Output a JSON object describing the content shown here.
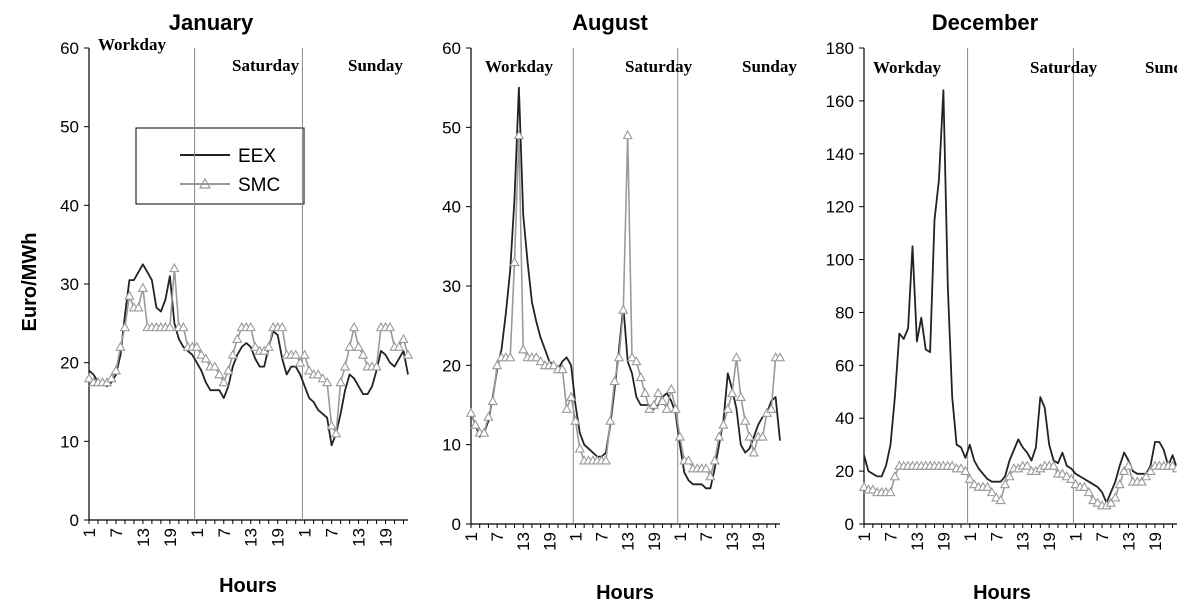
{
  "colors": {
    "eex": "#222222",
    "smc": "#9a9a9a",
    "axis": "#000000",
    "separator": "#888888"
  },
  "legend": {
    "entries": [
      "EEX",
      "SMC"
    ]
  },
  "chart_data": [
    {
      "type": "line",
      "title": "January",
      "xlabel": "Hours",
      "ylabel": "Euro/MWh",
      "ylim": [
        0,
        60
      ],
      "yticks": [
        0,
        10,
        20,
        30,
        40,
        50,
        60
      ],
      "xtick_labels": [
        "1",
        "7",
        "13",
        "19",
        "1",
        "7",
        "13",
        "19",
        "1",
        "7",
        "13",
        "19"
      ],
      "day_labels": [
        "Workday",
        "Saturday",
        "Sunday"
      ],
      "hours_per_day": 24,
      "grid": false,
      "legend_position": "top-center",
      "series": [
        {
          "name": "EEX",
          "values": [
            19,
            18.5,
            17.5,
            17.5,
            17,
            17.5,
            18.5,
            21,
            26,
            30.5,
            30.5,
            31.5,
            32.5,
            31.5,
            30.5,
            27,
            26.5,
            28,
            31,
            25,
            23,
            22,
            21.5,
            21,
            20,
            19,
            17.5,
            16.5,
            16.5,
            16.5,
            15.5,
            17,
            19.5,
            21,
            22,
            22.5,
            22,
            20.5,
            19.5,
            19.5,
            22,
            24,
            23.5,
            20.5,
            18.5,
            19.5,
            19.5,
            18.5,
            17,
            15.5,
            15,
            14,
            13.5,
            13,
            9.5,
            11,
            13.5,
            16.5,
            18.5,
            18,
            17,
            16,
            16,
            17,
            19,
            21.5,
            21,
            20,
            19.5,
            20.5,
            21.5,
            18.5
          ]
        },
        {
          "name": "SMC",
          "values": [
            18,
            17.5,
            17.5,
            17.5,
            17.5,
            18,
            19,
            22,
            24.5,
            28.5,
            27,
            27,
            29.5,
            24.5,
            24.5,
            24.5,
            24.5,
            24.5,
            24.5,
            32,
            24.5,
            24.5,
            22,
            22,
            22,
            21,
            20.5,
            19.5,
            19.5,
            18.5,
            17.5,
            19,
            21,
            23,
            24.5,
            24.5,
            24.5,
            22,
            21.5,
            21.5,
            22,
            24.5,
            24.5,
            24.5,
            21,
            21,
            21,
            20,
            21,
            19,
            18.5,
            18.5,
            18,
            17.5,
            12,
            11,
            17.5,
            19.5,
            22,
            24.5,
            22,
            21,
            19.5,
            19.5,
            19.5,
            24.5,
            24.5,
            24.5,
            22,
            22,
            23,
            21
          ]
        }
      ]
    },
    {
      "type": "line",
      "title": "August",
      "xlabel": "Hours",
      "ylabel": "",
      "ylim": [
        0,
        60
      ],
      "yticks": [
        0,
        10,
        20,
        30,
        40,
        50,
        60
      ],
      "xtick_labels": [
        "1",
        "7",
        "13",
        "19",
        "1",
        "7",
        "13",
        "19",
        "1",
        "7",
        "13",
        "19"
      ],
      "day_labels": [
        "Workday",
        "Saturday",
        "Sunday"
      ],
      "hours_per_day": 24,
      "grid": false,
      "series": [
        {
          "name": "EEX",
          "values": [
            14,
            12.5,
            11,
            11.5,
            13,
            16,
            19.5,
            22,
            26.5,
            32,
            41,
            55,
            39,
            33,
            28,
            25.5,
            23.5,
            22,
            20.5,
            20,
            19.5,
            20.5,
            21,
            20,
            15,
            11.5,
            10,
            9.5,
            9,
            8.5,
            8.5,
            9,
            12.5,
            17,
            22,
            27.5,
            20.5,
            19,
            16,
            15,
            15,
            15,
            14.5,
            15,
            16,
            16.5,
            15.5,
            14,
            10,
            6.5,
            5.5,
            5,
            5,
            5,
            4.5,
            4.5,
            7,
            10,
            13,
            19,
            17,
            14.5,
            10,
            9,
            9.5,
            11,
            12.5,
            13.5,
            14,
            15.5,
            16,
            10.5
          ]
        },
        {
          "name": "SMC",
          "values": [
            14,
            12.5,
            11.5,
            11.5,
            13.5,
            15.5,
            20,
            21,
            21,
            21,
            33,
            49,
            22,
            21,
            21,
            21,
            20.5,
            20,
            20,
            20,
            19.5,
            19.5,
            14.5,
            16,
            13,
            9.5,
            8,
            8,
            8,
            8,
            8,
            8,
            13,
            18,
            21,
            27,
            49,
            21,
            20.5,
            18.5,
            16.5,
            14.5,
            15,
            16.5,
            15.5,
            14.5,
            17,
            14.5,
            11,
            8,
            8,
            7,
            7,
            7,
            7,
            6,
            8,
            11,
            12.5,
            14.5,
            16.5,
            21,
            16,
            13,
            11,
            9,
            11,
            11,
            14,
            14.5,
            21,
            21
          ]
        }
      ]
    },
    {
      "type": "line",
      "title": "December",
      "xlabel": "Hours",
      "ylabel": "",
      "ylim": [
        0,
        180
      ],
      "yticks": [
        0,
        20,
        40,
        60,
        80,
        100,
        120,
        140,
        160,
        180
      ],
      "xtick_labels": [
        "1",
        "7",
        "13",
        "19",
        "1",
        "7",
        "13",
        "19",
        "1",
        "7",
        "13",
        "19"
      ],
      "day_labels": [
        "Workday",
        "Saturday",
        "Sunday"
      ],
      "hours_per_day": 24,
      "grid": false,
      "series": [
        {
          "name": "EEX",
          "values": [
            26,
            20,
            19,
            18,
            18,
            22,
            30,
            48,
            72,
            70,
            74,
            105,
            69,
            78,
            66,
            65,
            115,
            130,
            164,
            90,
            48,
            30,
            29,
            25,
            30,
            24,
            21,
            19,
            17,
            16,
            16,
            16,
            18,
            24,
            28,
            32,
            29,
            27,
            24,
            29,
            48,
            44,
            30,
            24,
            23,
            27,
            22,
            21,
            19,
            18,
            17,
            16,
            15,
            14,
            12,
            8,
            12,
            16,
            22,
            27,
            24,
            20,
            19,
            19,
            19,
            22,
            31,
            31,
            28,
            22,
            26,
            21
          ]
        },
        {
          "name": "SMC",
          "values": [
            14,
            13,
            13,
            12,
            12,
            12,
            12,
            18,
            22,
            22,
            22,
            22,
            22,
            22,
            22,
            22,
            22,
            22,
            22,
            22,
            22,
            21,
            21,
            20,
            17,
            15,
            14,
            14,
            14,
            12,
            10,
            9,
            15,
            18,
            21,
            21,
            22,
            22,
            20,
            20,
            21,
            22,
            22,
            22,
            19,
            19,
            18,
            17,
            15,
            14,
            14,
            12,
            9,
            8,
            7,
            7,
            8,
            10,
            15,
            20,
            22,
            16,
            16,
            16,
            18,
            20,
            22,
            22,
            22,
            22,
            22,
            21
          ]
        }
      ]
    }
  ]
}
